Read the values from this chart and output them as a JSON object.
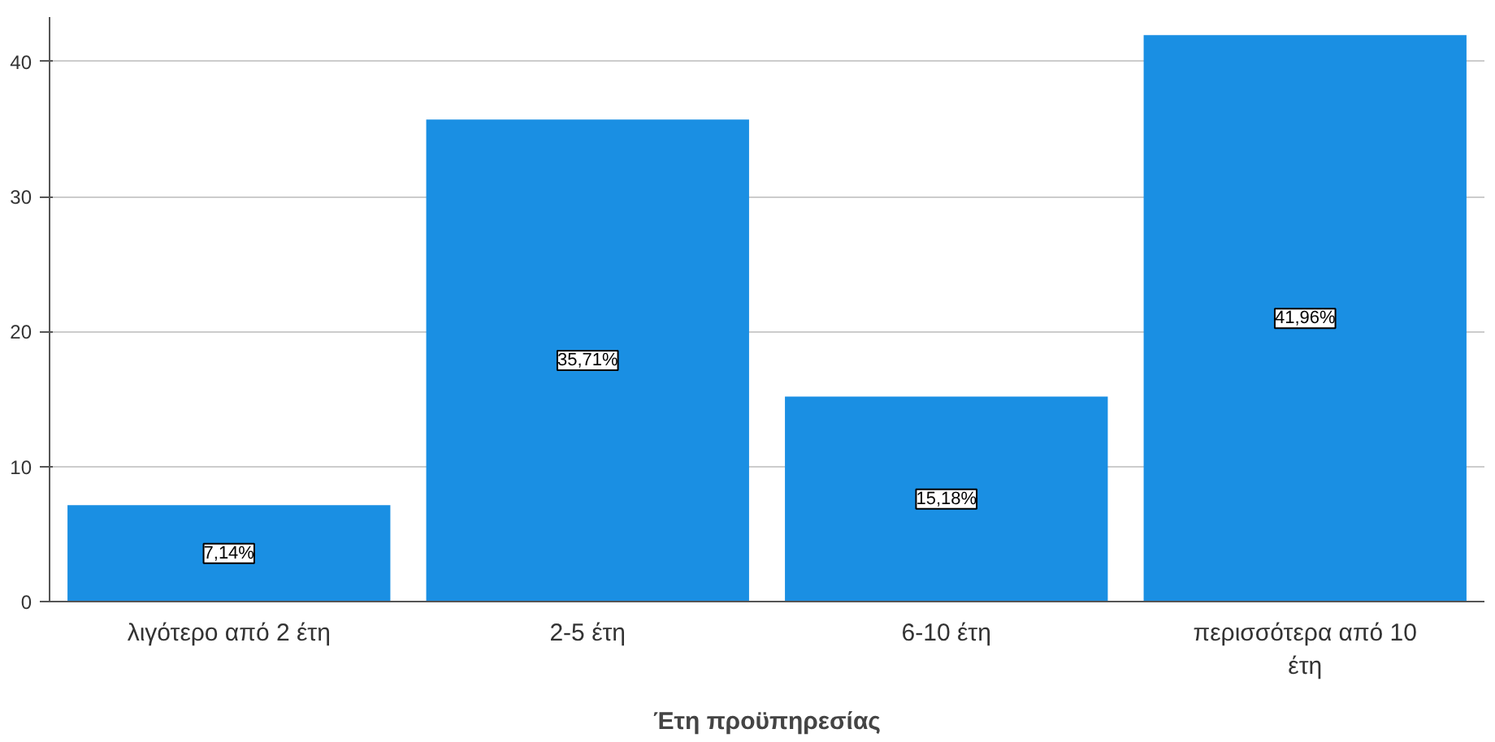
{
  "chart_data": {
    "type": "bar",
    "xlabel": "Έτη προϋπηρεσίας",
    "categories": [
      "λιγότερο από 2 έτη",
      "2-5 έτη",
      "6-10 έτη",
      "περισσότερα από 10 έτη"
    ],
    "values": [
      7.14,
      35.71,
      15.18,
      41.96
    ],
    "value_labels": [
      "7,14%",
      "35,71%",
      "15,18%",
      "41,96%"
    ],
    "color": "#1a8fe3",
    "ylim": [
      0,
      43.3
    ],
    "yticks": [
      0,
      10,
      20,
      30,
      40
    ],
    "grid": "y"
  }
}
